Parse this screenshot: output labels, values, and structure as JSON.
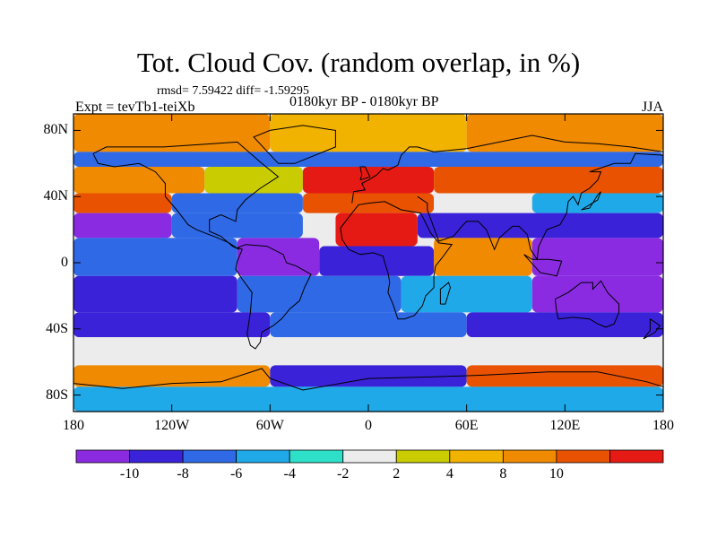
{
  "header": {
    "title": "Tot. Cloud Cov. (random overlap, in %)",
    "stats": "rmsd= 7.59422 diff= -1.59295",
    "experiment": "Expt = tevTb1-teiXb",
    "period": "0180kyr BP - 0180kyr BP",
    "season": "JJA"
  },
  "map": {
    "lat_ticks": [
      {
        "label": "80N",
        "value": 80
      },
      {
        "label": "40N",
        "value": 40
      },
      {
        "label": "0",
        "value": 0
      },
      {
        "label": "40S",
        "value": -40
      },
      {
        "label": "80S",
        "value": -80
      }
    ],
    "lon_ticks": [
      {
        "label": "180",
        "value": -180
      },
      {
        "label": "120W",
        "value": -120
      },
      {
        "label": "60W",
        "value": -60
      },
      {
        "label": "0",
        "value": 0
      },
      {
        "label": "60E",
        "value": 60
      },
      {
        "label": "120E",
        "value": 120
      },
      {
        "label": "180",
        "value": 180
      }
    ],
    "lat_range": [
      -90,
      90
    ],
    "lon_range": [
      -180,
      180
    ],
    "field_bands": [
      {
        "lat": [
          67,
          90
        ],
        "lon": [
          -180,
          -60
        ],
        "level": 3
      },
      {
        "lat": [
          67,
          90
        ],
        "lon": [
          -60,
          60
        ],
        "level": 2
      },
      {
        "lat": [
          67,
          90
        ],
        "lon": [
          60,
          180
        ],
        "level": 3
      },
      {
        "lat": [
          58,
          67
        ],
        "lon": [
          -180,
          180
        ],
        "level": -3
      },
      {
        "lat": [
          42,
          58
        ],
        "lon": [
          -180,
          -100
        ],
        "level": 3
      },
      {
        "lat": [
          42,
          58
        ],
        "lon": [
          -100,
          -40
        ],
        "level": 1
      },
      {
        "lat": [
          42,
          58
        ],
        "lon": [
          -40,
          40
        ],
        "level": 5
      },
      {
        "lat": [
          42,
          58
        ],
        "lon": [
          40,
          180
        ],
        "level": 4
      },
      {
        "lat": [
          30,
          42
        ],
        "lon": [
          -180,
          -120
        ],
        "level": 4
      },
      {
        "lat": [
          30,
          42
        ],
        "lon": [
          -120,
          -40
        ],
        "level": -3
      },
      {
        "lat": [
          30,
          42
        ],
        "lon": [
          -40,
          40
        ],
        "level": 4
      },
      {
        "lat": [
          30,
          42
        ],
        "lon": [
          40,
          100
        ],
        "level": 0
      },
      {
        "lat": [
          30,
          42
        ],
        "lon": [
          100,
          180
        ],
        "level": -2
      },
      {
        "lat": [
          15,
          30
        ],
        "lon": [
          -180,
          -120
        ],
        "level": -5
      },
      {
        "lat": [
          15,
          30
        ],
        "lon": [
          -120,
          -40
        ],
        "level": -3
      },
      {
        "lat": [
          10,
          30
        ],
        "lon": [
          -20,
          30
        ],
        "level": 5
      },
      {
        "lat": [
          15,
          30
        ],
        "lon": [
          30,
          180
        ],
        "level": -4
      },
      {
        "lat": [
          -8,
          15
        ],
        "lon": [
          -180,
          -80
        ],
        "level": -3
      },
      {
        "lat": [
          -8,
          15
        ],
        "lon": [
          -80,
          -30
        ],
        "level": -5
      },
      {
        "lat": [
          -8,
          10
        ],
        "lon": [
          -30,
          40
        ],
        "level": -4
      },
      {
        "lat": [
          -8,
          15
        ],
        "lon": [
          40,
          100
        ],
        "level": 3
      },
      {
        "lat": [
          -8,
          15
        ],
        "lon": [
          100,
          180
        ],
        "level": -5
      },
      {
        "lat": [
          -30,
          -8
        ],
        "lon": [
          -180,
          -80
        ],
        "level": -4
      },
      {
        "lat": [
          -30,
          -8
        ],
        "lon": [
          -80,
          20
        ],
        "level": -3
      },
      {
        "lat": [
          -30,
          -8
        ],
        "lon": [
          20,
          100
        ],
        "level": -2
      },
      {
        "lat": [
          -30,
          -8
        ],
        "lon": [
          100,
          180
        ],
        "level": -5
      },
      {
        "lat": [
          -45,
          -30
        ],
        "lon": [
          -180,
          -60
        ],
        "level": -4
      },
      {
        "lat": [
          -45,
          -30
        ],
        "lon": [
          -60,
          60
        ],
        "level": -3
      },
      {
        "lat": [
          -45,
          -30
        ],
        "lon": [
          60,
          180
        ],
        "level": -4
      },
      {
        "lat": [
          -62,
          -45
        ],
        "lon": [
          -180,
          180
        ],
        "level": 0
      },
      {
        "lat": [
          -75,
          -62
        ],
        "lon": [
          -180,
          -60
        ],
        "level": 3
      },
      {
        "lat": [
          -75,
          -62
        ],
        "lon": [
          -60,
          60
        ],
        "level": -4
      },
      {
        "lat": [
          -75,
          -62
        ],
        "lon": [
          60,
          180
        ],
        "level": 4
      },
      {
        "lat": [
          -90,
          -75
        ],
        "lon": [
          -180,
          180
        ],
        "level": -2
      }
    ]
  },
  "colorbar": {
    "boxes": [
      {
        "color": "#8a2be2",
        "level": -5
      },
      {
        "color": "#3a22d8",
        "level": -4
      },
      {
        "color": "#2f69e6",
        "level": -3
      },
      {
        "color": "#1fa9e8",
        "level": -2
      },
      {
        "color": "#2fe0c8",
        "level": -1
      },
      {
        "color": "#ececec",
        "level": 0
      },
      {
        "color": "#c8cc00",
        "level": 1
      },
      {
        "color": "#f2b200",
        "level": 2
      },
      {
        "color": "#f08a00",
        "level": 3
      },
      {
        "color": "#e85200",
        "level": 4
      },
      {
        "color": "#e61a14",
        "level": 5
      }
    ],
    "labels": [
      "-10",
      "-8",
      "-6",
      "-4",
      "-2",
      "2",
      "4",
      "8",
      "10"
    ]
  }
}
